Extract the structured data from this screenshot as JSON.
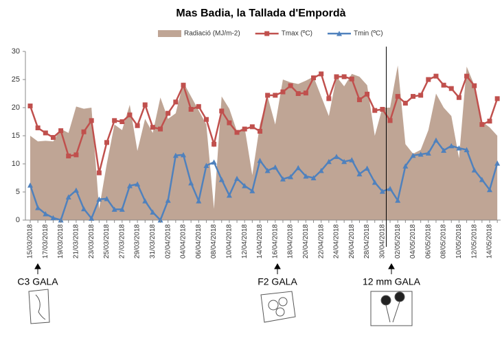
{
  "chart_data": {
    "type": "combo",
    "title": "Mas Badia, la Tallada d'Empordà",
    "categories": [
      "15/03/2018",
      null,
      "17/03/2018",
      null,
      "19/03/2018",
      null,
      "21/03/2018",
      null,
      "23/03/2018",
      null,
      "25/03/2018",
      null,
      "27/03/2018",
      null,
      "29/03/2018",
      null,
      "31/03/2018",
      null,
      "02/04/2018",
      null,
      "04/04/2018",
      null,
      "06/04/2018",
      null,
      "08/04/2018",
      null,
      "10/04/2018",
      null,
      "12/04/2018",
      null,
      "14/04/2018",
      null,
      "16/04/2018",
      null,
      "18/04/2018",
      null,
      "20/04/2018",
      null,
      "22/04/2018",
      null,
      "24/04/2018",
      null,
      "26/04/2018",
      null,
      "28/04/2018",
      null,
      "30/04/2018",
      null,
      "02/05/2018",
      null,
      "04/05/2018",
      null,
      "06/05/2018",
      null,
      "08/05/2018",
      null,
      "10/05/2018",
      null,
      "12/05/2018",
      null,
      "14/05/2018",
      null
    ],
    "series": [
      {
        "name": "Radiació (MJ/m-2)",
        "type": "area",
        "color": "#bfa595",
        "values": [
          15.0,
          14.0,
          14.1,
          14.0,
          16.2,
          15.5,
          20.2,
          19.8,
          20.0,
          2.0,
          10.0,
          17.0,
          16.0,
          20.5,
          12.3,
          18.0,
          15.5,
          21.8,
          18.0,
          19.0,
          24.5,
          22.0,
          19.5,
          17.0,
          2.0,
          22.0,
          19.8,
          15.8,
          16.5,
          8.0,
          17.0,
          22.0,
          17.0,
          25.0,
          24.5,
          24.2,
          24.8,
          25.5,
          22.0,
          18.5,
          25.5,
          23.8,
          26.0,
          25.5,
          24.0,
          15.0,
          20.0,
          20.0,
          27.5,
          13.5,
          11.8,
          12.5,
          16.0,
          22.5,
          20.0,
          18.5,
          11.0,
          27.3,
          24.0,
          17.5,
          16.5,
          15.0
        ]
      },
      {
        "name": "Tmax (ºC)",
        "type": "line",
        "marker": "square",
        "color": "#c0504d",
        "values": [
          20.3,
          16.4,
          15.5,
          14.7,
          15.9,
          11.4,
          11.6,
          15.7,
          17.7,
          8.4,
          13.8,
          17.7,
          17.5,
          18.7,
          16.8,
          20.5,
          16.5,
          16.2,
          19.0,
          21.0,
          24.0,
          19.7,
          20.2,
          17.9,
          13.5,
          19.4,
          17.3,
          15.6,
          16.2,
          16.6,
          15.8,
          22.2,
          22.2,
          22.8,
          23.9,
          22.5,
          22.6,
          25.3,
          26.0,
          21.6,
          25.5,
          25.5,
          25.1,
          21.4,
          22.4,
          19.5,
          19.7,
          17.7,
          22.0,
          20.8,
          22.0,
          22.2,
          25.0,
          25.6,
          24.0,
          23.4,
          21.8,
          25.6,
          23.9,
          17.0,
          17.6,
          21.6
        ]
      },
      {
        "name": "Tmin (ºC)",
        "type": "line",
        "marker": "triangle",
        "color": "#4f81bd",
        "values": [
          6.2,
          2.2,
          1.1,
          0.4,
          0,
          4.1,
          5.3,
          2.0,
          0.3,
          3.7,
          3.8,
          1.9,
          1.9,
          6.1,
          6.4,
          3.4,
          1.4,
          0,
          3.5,
          11.5,
          11.6,
          6.6,
          3.4,
          9.7,
          10.3,
          7.2,
          4.4,
          7.4,
          6.1,
          5.2,
          10.6,
          8.8,
          9.4,
          7.3,
          7.7,
          9.3,
          7.8,
          7.5,
          8.8,
          10.4,
          11.3,
          10.4,
          10.7,
          8.2,
          9.2,
          6.7,
          5.1,
          5.6,
          3.5,
          9.6,
          11.5,
          11.7,
          11.9,
          14.2,
          12.4,
          13.2,
          12.8,
          12.5,
          8.9,
          7.2,
          5.4,
          10.1
        ]
      }
    ],
    "ylim": [
      0,
      30
    ],
    "yticks": [
      0,
      5,
      10,
      15,
      20,
      25,
      30
    ],
    "grid": false,
    "legend": "top",
    "annotations": [
      "C3 GALA",
      "F2 GALA",
      "12 mm GALA"
    ]
  }
}
